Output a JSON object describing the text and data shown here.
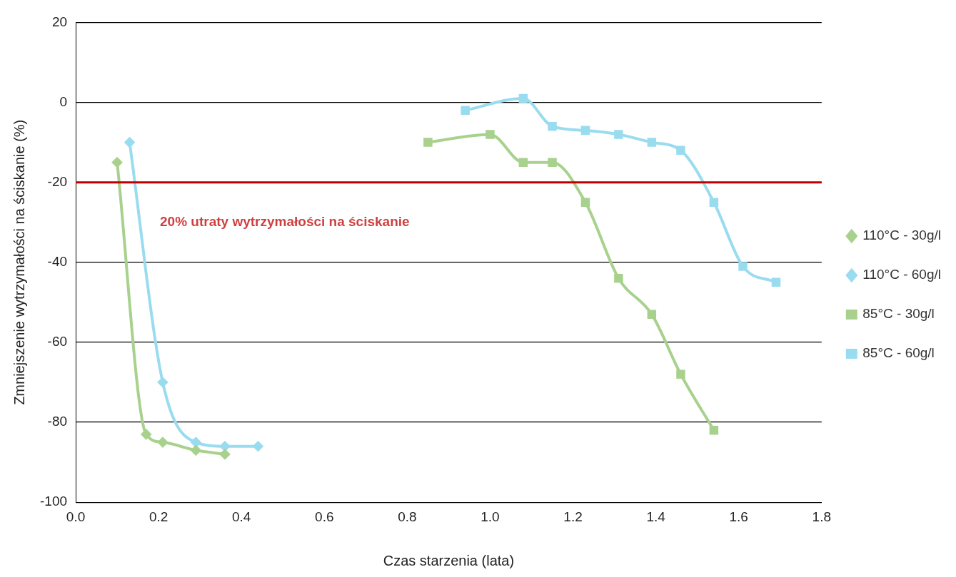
{
  "chart_data": {
    "type": "line",
    "xlabel": "Czas starzenia (lata)",
    "ylabel": "Zmniejszenie wytrzymałości na ściskanie (%)",
    "series": [
      {
        "name": "110°C - 30g/l",
        "color": "#a9d18e",
        "marker": "diamond",
        "x": [
          0.1,
          0.17,
          0.21,
          0.29,
          0.36
        ],
        "values": [
          -15,
          -83,
          -85,
          -87,
          -88
        ]
      },
      {
        "name": "110°C - 60g/l",
        "color": "#9adcef",
        "marker": "diamond",
        "x": [
          0.13,
          0.21,
          0.29,
          0.36,
          0.44
        ],
        "values": [
          -10,
          -70,
          -85,
          -86,
          -86
        ]
      },
      {
        "name": "85°C - 30g/l",
        "color": "#a9d18e",
        "marker": "square",
        "x": [
          0.85,
          1.0,
          1.08,
          1.15,
          1.23,
          1.31,
          1.39,
          1.46,
          1.54
        ],
        "values": [
          -10,
          -8,
          -15,
          -15,
          -25,
          -44,
          -53,
          -68,
          -82
        ]
      },
      {
        "name": "85°C - 60g/l",
        "color": "#9adcef",
        "marker": "square",
        "x": [
          0.94,
          1.08,
          1.15,
          1.23,
          1.31,
          1.39,
          1.46,
          1.54,
          1.61,
          1.69
        ],
        "values": [
          -2,
          1,
          -6,
          -7,
          -8,
          -10,
          -12,
          -25,
          -41,
          -45
        ]
      }
    ],
    "xlim": [
      0,
      1.8
    ],
    "xticks": [
      {
        "value": 0,
        "label": "0.0"
      },
      0.2,
      0.4,
      0.6,
      0.8,
      {
        "value": 1,
        "label": "1.0"
      },
      1.2,
      1.4,
      1.6,
      1.8
    ],
    "ylim": [
      -100,
      20
    ],
    "yticks": [
      -100,
      -80,
      -60,
      -40,
      -20,
      0,
      20
    ],
    "ref_lines": [
      {
        "axis": "y",
        "value": -20,
        "label": "20% utraty wytrzymałości na ściskanie",
        "color": "#c00000"
      }
    ],
    "grid": "y",
    "legend": "right",
    "line_style": "solid"
  }
}
